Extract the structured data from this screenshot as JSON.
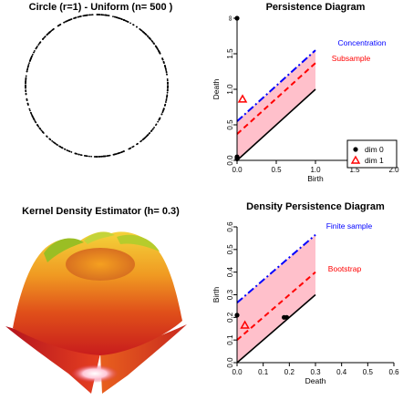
{
  "panels": {
    "circle": {
      "title": "Circle (r=1) - Uniform (n= 500 )"
    },
    "kde": {
      "title": "Kernel Density Estimator (h= 0.3)"
    }
  },
  "chart_data": [
    {
      "type": "scatter",
      "title": "Circle (r=1) - Uniform (n= 500 )",
      "n": 500,
      "radius": 1,
      "axes_visible": false
    },
    {
      "type": "scatter",
      "title": "Persistence Diagram",
      "xlabel": "Birth",
      "ylabel": "Death",
      "xlim": [
        0,
        2.0
      ],
      "ylim": [
        0,
        2.0
      ],
      "xticks": [
        "0.0",
        "0.5",
        "1.0",
        "1.5",
        "2.0"
      ],
      "yticks": [
        "0.0",
        "0.5",
        "1.0",
        "1.5",
        "∞"
      ],
      "series": [
        {
          "name": "dim 0",
          "marker": "filled-circle",
          "color": "#000000",
          "points": [
            [
              0,
              2.0
            ],
            [
              0,
              0.03
            ],
            [
              0,
              0.05
            ],
            [
              0,
              0.02
            ]
          ]
        },
        {
          "name": "dim 1",
          "marker": "open-triangle",
          "color": "#ff0000",
          "points": [
            [
              0.07,
              0.86
            ]
          ]
        }
      ],
      "bands": [
        {
          "name": "Concentration",
          "color": "#0000ff",
          "dash": "dotdash",
          "offset": 0.55,
          "x_range": [
            0,
            1.0
          ]
        },
        {
          "name": "Subsample",
          "color": "#ff0000",
          "dash": "dashed",
          "offset": 0.37,
          "x_range": [
            0,
            1.0
          ]
        }
      ],
      "legend_position": "right",
      "grid": false
    },
    {
      "type": "surface",
      "title": "Kernel Density Estimator (h= 0.3)"
    },
    {
      "type": "scatter",
      "title": "Density Persistence Diagram",
      "xlabel": "Death",
      "ylabel": "Birth",
      "xlim": [
        0,
        0.6
      ],
      "ylim": [
        0,
        0.6
      ],
      "xticks": [
        "0.0",
        "0.1",
        "0.2",
        "0.3",
        "0.4",
        "0.5",
        "0.6"
      ],
      "yticks": [
        "0.0",
        "0.1",
        "0.2",
        "0.3",
        "0.4",
        "0.5",
        "0.6"
      ],
      "series": [
        {
          "name": "dim 0",
          "marker": "filled-circle",
          "color": "#000000",
          "points": [
            [
              0,
              0.21
            ],
            [
              0.18,
              0.2
            ],
            [
              0.19,
              0.2
            ]
          ]
        },
        {
          "name": "dim 1",
          "marker": "open-triangle",
          "color": "#ff0000",
          "points": [
            [
              0.03,
              0.165
            ]
          ]
        }
      ],
      "bands": [
        {
          "name": "Finite sample",
          "color": "#0000ff",
          "dash": "dotdash",
          "offset": 0.265,
          "x_range": [
            0,
            0.3
          ]
        },
        {
          "name": "Bootstrap",
          "color": "#ff0000",
          "dash": "dashed",
          "offset": 0.1,
          "x_range": [
            0,
            0.3
          ]
        }
      ],
      "grid": false
    }
  ],
  "colors": {
    "band_fill": "#ffc0cb",
    "blue": "#0000ff",
    "red": "#ff0000",
    "black": "#000000"
  }
}
